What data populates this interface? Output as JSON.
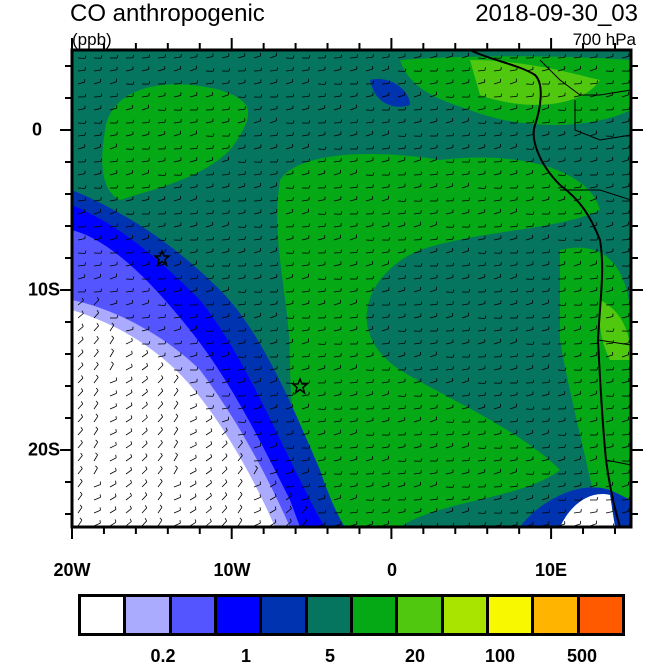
{
  "title": "CO anthropogenic",
  "units": "(ppb)",
  "datetime": "2018-09-30_03",
  "level": "700 hPa",
  "map": {
    "lon_range": [
      -20,
      15
    ],
    "lat_range": [
      -25,
      5
    ],
    "x_ticks": [
      "20W",
      "10W",
      "0",
      "10E"
    ],
    "y_ticks": [
      "0",
      "10S",
      "20S"
    ],
    "markers": [
      "star-icon",
      "star-icon"
    ],
    "overlay": "wind barbs"
  },
  "colorbar": {
    "colors": [
      "#ffffff",
      "#aaaaff",
      "#5555ff",
      "#0000ff",
      "#0033b0",
      "#05755f",
      "#05a815",
      "#50c810",
      "#a8e400",
      "#f8f800",
      "#ffb400",
      "#ff5a00",
      "#ff1000"
    ],
    "labels": [
      "0.2",
      "1",
      "5",
      "20",
      "100",
      "500"
    ]
  }
}
